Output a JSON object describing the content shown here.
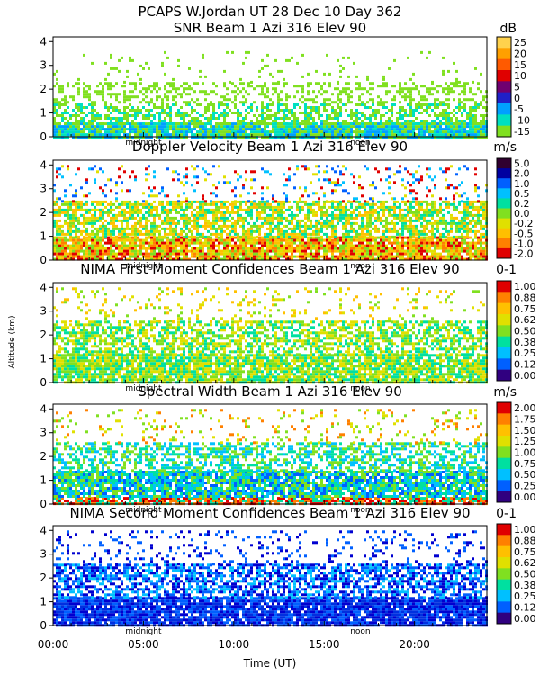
{
  "header": {
    "title": "PCAPS W.Jordan UT  28 Dec 10 Day 362"
  },
  "axes": {
    "ylabel": "Altitude (km)",
    "xlabel": "Time (UT)",
    "xticks": [
      "00:00",
      "05:00",
      "10:00",
      "15:00",
      "20:00"
    ],
    "yticks": [
      "0",
      "1",
      "2",
      "3",
      "4"
    ],
    "day_markers": [
      "midnight",
      "noon"
    ]
  },
  "chart_data": [
    {
      "type": "heatmap",
      "title": "SNR Beam 1 Azi 316 Elev 90",
      "unit": "dB",
      "xlabel": "",
      "ylabel": "Altitude (km)",
      "xlim": [
        0,
        24
      ],
      "ylim": [
        0,
        4.2
      ],
      "colorbar_ticks": [
        "25",
        "20",
        "15",
        "10",
        "5",
        "0",
        "-5",
        "-10",
        "-15"
      ],
      "colors": [
        "#ffd24d",
        "#ffa000",
        "#ff5a00",
        "#e00000",
        "#700070",
        "#2020c8",
        "#00a0ff",
        "#00e0c0",
        "#80e020"
      ],
      "layers": [
        {
          "y0": 0.0,
          "y1": 0.6,
          "density": 0.95,
          "colors": [
            "#80e020",
            "#00e0c0",
            "#00a0ff"
          ]
        },
        {
          "y0": 0.6,
          "y1": 1.4,
          "density": 0.55,
          "colors": [
            "#80e020",
            "#80e020",
            "#00e0c0"
          ]
        },
        {
          "y0": 1.4,
          "y1": 2.3,
          "density": 0.35,
          "colors": [
            "#80e020"
          ]
        },
        {
          "y0": 2.3,
          "y1": 3.6,
          "density": 0.06,
          "colors": [
            "#80e020"
          ]
        }
      ]
    },
    {
      "type": "heatmap",
      "title": "Doppler Velocity Beam 1 Azi 316 Elev 90",
      "unit": "m/s",
      "xlabel": "",
      "ylabel": "Altitude (km)",
      "xlim": [
        0,
        24
      ],
      "ylim": [
        0,
        4.2
      ],
      "colorbar_ticks": [
        "5.0",
        "2.0",
        "1.0",
        "0.5",
        "0.2",
        "0.0",
        "-0.2",
        "-0.5",
        "-1.0",
        "-2.0"
      ],
      "colors": [
        "#300030",
        "#0000a0",
        "#0060ff",
        "#00c0ff",
        "#00e0a0",
        "#80e020",
        "#e0e000",
        "#ffc000",
        "#ff8000",
        "#e00000"
      ],
      "layers": [
        {
          "y0": 0.0,
          "y1": 1.0,
          "density": 0.9,
          "colors": [
            "#ffc000",
            "#ff8000",
            "#e00000",
            "#e0e000",
            "#80e020"
          ]
        },
        {
          "y0": 1.0,
          "y1": 2.5,
          "density": 0.7,
          "colors": [
            "#80e020",
            "#e0e000",
            "#ffc000",
            "#00e0a0"
          ]
        },
        {
          "y0": 2.5,
          "y1": 4.0,
          "density": 0.15,
          "colors": [
            "#00c0ff",
            "#0060ff",
            "#e0e000",
            "#e00000"
          ]
        }
      ]
    },
    {
      "type": "heatmap",
      "title": "NIMA First Moment Confidences Beam 1 Azi 316 Elev 90",
      "unit": "0-1",
      "xlabel": "",
      "ylabel": "Altitude (km)",
      "xlim": [
        0,
        24
      ],
      "ylim": [
        0,
        4.2
      ],
      "colorbar_ticks": [
        "1.00",
        "0.88",
        "0.75",
        "0.62",
        "0.50",
        "0.38",
        "0.25",
        "0.12",
        "0.00"
      ],
      "colors": [
        "#e00000",
        "#ff8000",
        "#ffc000",
        "#e0e000",
        "#80e020",
        "#00e0a0",
        "#00c0ff",
        "#0060ff",
        "#300080"
      ],
      "layers": [
        {
          "y0": 0.0,
          "y1": 1.2,
          "density": 0.85,
          "colors": [
            "#80e020",
            "#00e0a0",
            "#e0e000"
          ]
        },
        {
          "y0": 1.2,
          "y1": 2.6,
          "density": 0.6,
          "colors": [
            "#80e020",
            "#e0e000",
            "#00e0a0"
          ]
        },
        {
          "y0": 2.6,
          "y1": 4.0,
          "density": 0.12,
          "colors": [
            "#80e020",
            "#e0e000",
            "#ffc000"
          ]
        }
      ]
    },
    {
      "type": "heatmap",
      "title": "Spectral Width Beam 1 Azi 316 Elev 90",
      "unit": "m/s",
      "xlabel": "",
      "ylabel": "Altitude (km)",
      "xlim": [
        0,
        24
      ],
      "ylim": [
        0,
        4.2
      ],
      "colorbar_ticks": [
        "2.00",
        "1.75",
        "1.50",
        "1.25",
        "1.00",
        "0.75",
        "0.50",
        "0.25",
        "0.00"
      ],
      "colors": [
        "#e00000",
        "#ff8000",
        "#ffc000",
        "#e0e000",
        "#80e020",
        "#00e0a0",
        "#00c0ff",
        "#0060ff",
        "#300080"
      ],
      "layers": [
        {
          "y0": 0.0,
          "y1": 0.3,
          "density": 0.8,
          "colors": [
            "#e00000",
            "#ff8000",
            "#00e0a0"
          ]
        },
        {
          "y0": 0.3,
          "y1": 1.4,
          "density": 0.85,
          "colors": [
            "#00e0a0",
            "#00c0ff",
            "#0060ff",
            "#80e020"
          ]
        },
        {
          "y0": 1.4,
          "y1": 2.6,
          "density": 0.55,
          "colors": [
            "#00e0a0",
            "#80e020",
            "#00c0ff"
          ]
        },
        {
          "y0": 2.6,
          "y1": 4.0,
          "density": 0.12,
          "colors": [
            "#80e020",
            "#e0e000",
            "#ff8000"
          ]
        }
      ]
    },
    {
      "type": "heatmap",
      "title": "NIMA Second Moment Confidences Beam 1 Azi 316 Elev 90",
      "unit": "0-1",
      "xlabel": "Time (UT)",
      "ylabel": "Altitude (km)",
      "xlim": [
        0,
        24
      ],
      "ylim": [
        0,
        4.2
      ],
      "colorbar_ticks": [
        "1.00",
        "0.88",
        "0.75",
        "0.62",
        "0.50",
        "0.38",
        "0.25",
        "0.12",
        "0.00"
      ],
      "colors": [
        "#e00000",
        "#ff8000",
        "#ffc000",
        "#e0e000",
        "#80e020",
        "#00e0a0",
        "#00c0ff",
        "#0060ff",
        "#300080"
      ],
      "layers": [
        {
          "y0": 0.0,
          "y1": 1.2,
          "density": 0.9,
          "colors": [
            "#0000d0",
            "#0060ff",
            "#0030e0"
          ]
        },
        {
          "y0": 1.2,
          "y1": 2.6,
          "density": 0.65,
          "colors": [
            "#0000d0",
            "#0060ff",
            "#00c0ff"
          ]
        },
        {
          "y0": 2.6,
          "y1": 4.0,
          "density": 0.15,
          "colors": [
            "#0060ff",
            "#0000d0"
          ]
        }
      ]
    }
  ]
}
